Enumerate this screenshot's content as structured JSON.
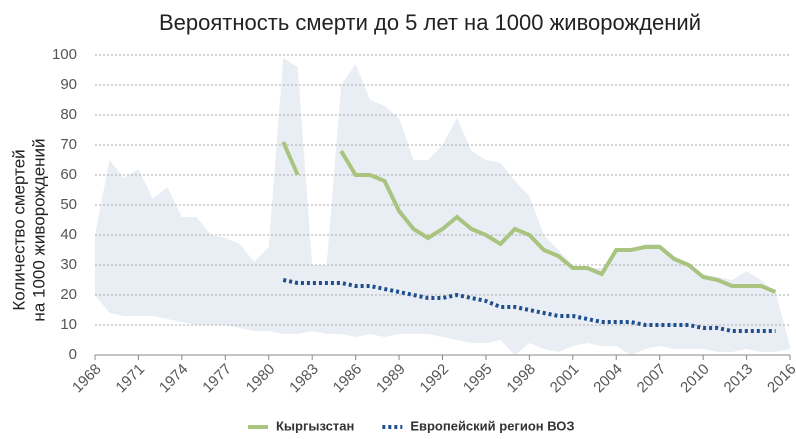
{
  "chart_data": {
    "type": "line",
    "title": "Вероятность смерти до 5 лет на 1000 живорождений",
    "y_label": [
      "Количество смертей",
      "на 1000 живорождений"
    ],
    "x": [
      1968,
      1969,
      1970,
      1971,
      1972,
      1973,
      1974,
      1975,
      1976,
      1977,
      1978,
      1979,
      1980,
      1981,
      1982,
      1983,
      1984,
      1985,
      1986,
      1987,
      1988,
      1989,
      1990,
      1991,
      1992,
      1993,
      1994,
      1995,
      1996,
      1997,
      1998,
      1999,
      2000,
      2001,
      2002,
      2003,
      2004,
      2005,
      2006,
      2007,
      2008,
      2009,
      2010,
      2011,
      2012,
      2013,
      2014,
      2015,
      2016
    ],
    "xlim": [
      1968,
      2016
    ],
    "xticks": [
      1968,
      1971,
      1974,
      1977,
      1980,
      1983,
      1986,
      1989,
      1992,
      1995,
      1998,
      2001,
      2004,
      2007,
      2010,
      2013,
      2016
    ],
    "ylim": [
      0,
      100
    ],
    "yticks": [
      0,
      10,
      20,
      30,
      40,
      50,
      60,
      70,
      80,
      90,
      100
    ],
    "grid": true,
    "band": {
      "color": "#e9eef4",
      "upper": [
        40,
        65,
        59,
        62,
        52,
        56,
        46,
        46,
        40,
        39,
        37,
        31,
        36,
        99,
        96,
        30,
        30,
        90,
        97,
        85,
        83,
        79,
        65,
        65,
        70,
        79,
        68,
        65,
        64,
        58,
        53,
        40,
        35,
        30,
        29,
        29,
        35,
        35,
        37,
        37,
        33,
        30,
        27,
        26,
        25,
        28,
        25,
        21,
        3
      ],
      "lower": [
        20,
        14,
        13,
        13,
        13,
        12,
        11,
        10,
        10,
        10,
        9,
        8,
        8,
        7,
        7,
        8,
        7,
        7,
        6,
        7,
        6,
        7,
        7,
        7,
        6,
        5,
        4,
        4,
        5,
        0,
        4,
        2,
        1,
        3,
        4,
        3,
        3,
        0,
        2,
        3,
        2,
        2,
        2,
        1,
        1,
        2,
        1,
        1,
        2
      ]
    },
    "series": [
      {
        "name": "Кыргызстан",
        "color": "#a9c47f",
        "style": "solid",
        "values": [
          null,
          null,
          null,
          null,
          null,
          null,
          null,
          null,
          null,
          null,
          null,
          null,
          null,
          71,
          60,
          null,
          null,
          68,
          60,
          60,
          58,
          48,
          42,
          39,
          42,
          46,
          42,
          40,
          37,
          42,
          40,
          35,
          33,
          29,
          29,
          27,
          35,
          35,
          36,
          36,
          32,
          30,
          26,
          25,
          23,
          23,
          23,
          21,
          null
        ]
      },
      {
        "name": "Европейский регион ВОЗ",
        "color": "#1f4e8c",
        "style": "dotted",
        "values": [
          null,
          null,
          null,
          null,
          null,
          null,
          null,
          null,
          null,
          null,
          null,
          null,
          null,
          25,
          24,
          24,
          24,
          24,
          23,
          23,
          22,
          21,
          20,
          19,
          19,
          20,
          19,
          18,
          16,
          16,
          15,
          14,
          13,
          13,
          12,
          11,
          11,
          11,
          10,
          10,
          10,
          10,
          9,
          9,
          8,
          8,
          8,
          8,
          null
        ]
      }
    ]
  }
}
